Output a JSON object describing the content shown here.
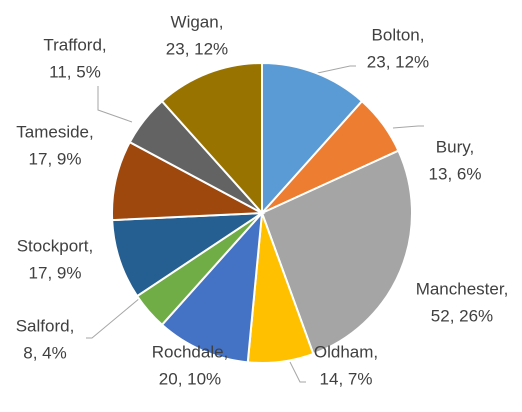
{
  "chart_data": {
    "type": "pie",
    "categories": [
      "Bolton,",
      "Bury,",
      "Manchester,",
      "Oldham,",
      "Rochdale,",
      "Salford,",
      "Stockport,",
      "Tameside,",
      "Trafford,",
      "Wigan,"
    ],
    "values": [
      23,
      13,
      52,
      14,
      20,
      8,
      17,
      17,
      11,
      23
    ],
    "value_labels": [
      "23, 12%",
      "13, 6%",
      "52, 26%",
      "14, 7%",
      "20, 10%",
      "8, 4%",
      "17, 9%",
      "17, 9%",
      "11, 5%",
      "23, 12%"
    ],
    "colors": [
      "#5b9bd5",
      "#ed7d31",
      "#a5a5a5",
      "#ffc000",
      "#4472c4",
      "#70ad47",
      "#255e91",
      "#9e480e",
      "#636363",
      "#997300"
    ]
  }
}
